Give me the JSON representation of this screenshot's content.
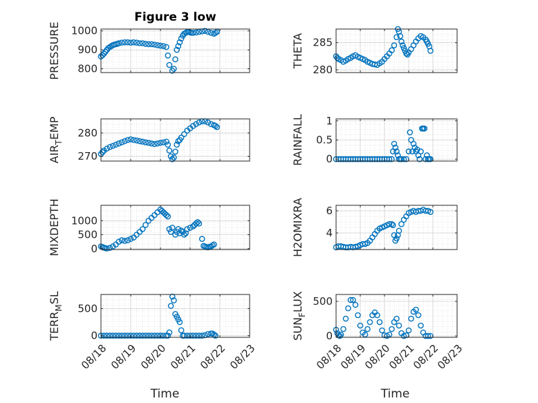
{
  "figure": {
    "title": "Figure 3 low",
    "xlabel": "Time",
    "x_ticks": [
      "08/18",
      "08/19",
      "08/20",
      "08/21",
      "08/22",
      "08/23"
    ],
    "marker_color": "#0072BD"
  },
  "chart_data": [
    {
      "type": "scatter",
      "ylabel": "PRESSURE",
      "ylim": [
        780,
        1010
      ],
      "yticks": [
        800,
        900,
        1000
      ],
      "xlim": [
        0,
        5
      ],
      "grid": true,
      "marker": "open-circle",
      "x": [
        0,
        0.05,
        0.1,
        0.15,
        0.2,
        0.25,
        0.3,
        0.35,
        0.4,
        0.45,
        0.5,
        0.55,
        0.6,
        0.7,
        0.8,
        0.9,
        1.0,
        1.1,
        1.2,
        1.3,
        1.4,
        1.5,
        1.6,
        1.7,
        1.8,
        1.9,
        2.0,
        2.1,
        2.2,
        2.25,
        2.3,
        2.4,
        2.45,
        2.5,
        2.55,
        2.6,
        2.65,
        2.7,
        2.75,
        2.8,
        2.85,
        2.9,
        2.95,
        3.0,
        3.05,
        3.1,
        3.2,
        3.3,
        3.4,
        3.5,
        3.6,
        3.7,
        3.8,
        3.85,
        3.9
      ],
      "y": [
        865,
        872,
        880,
        890,
        900,
        910,
        915,
        920,
        925,
        928,
        930,
        932,
        935,
        938,
        940,
        940,
        938,
        940,
        938,
        935,
        935,
        932,
        930,
        930,
        928,
        925,
        922,
        920,
        915,
        870,
        820,
        790,
        800,
        850,
        900,
        920,
        940,
        960,
        975,
        985,
        990,
        995,
        995,
        992,
        990,
        990,
        992,
        995,
        998,
        1000,
        995,
        990,
        985,
        990,
        995
      ]
    },
    {
      "type": "scatter",
      "ylabel": "THETA",
      "ylim": [
        279.5,
        287.5
      ],
      "yticks": [
        280,
        285
      ],
      "xlim": [
        0,
        5
      ],
      "grid": true,
      "marker": "open-circle",
      "x": [
        0,
        0.05,
        0.1,
        0.2,
        0.3,
        0.4,
        0.5,
        0.6,
        0.7,
        0.8,
        0.9,
        1.0,
        1.1,
        1.2,
        1.3,
        1.4,
        1.5,
        1.6,
        1.7,
        1.8,
        1.9,
        2.0,
        2.1,
        2.2,
        2.3,
        2.4,
        2.5,
        2.55,
        2.6,
        2.65,
        2.7,
        2.75,
        2.8,
        2.85,
        2.9,
        2.95,
        3.0,
        3.1,
        3.2,
        3.3,
        3.4,
        3.5,
        3.6,
        3.7,
        3.75,
        3.8,
        3.85,
        3.9
      ],
      "y": [
        282.5,
        282.2,
        282,
        281.8,
        281.5,
        281.7,
        282,
        282.2,
        282.5,
        282.7,
        282.4,
        282.2,
        282,
        281.8,
        281.5,
        281.3,
        281.1,
        281,
        280.9,
        281.2,
        281.5,
        282,
        282.5,
        283,
        283.6,
        284.5,
        286,
        287.5,
        287,
        286.2,
        285.2,
        284.5,
        284,
        283.5,
        283,
        282.8,
        283.2,
        283.8,
        284.5,
        285.2,
        285.8,
        286.2,
        286,
        285.6,
        285.2,
        284.8,
        284.3,
        283.5
      ]
    },
    {
      "type": "scatter",
      "ylabel": "AIR_TEMP",
      "ylim": [
        268,
        286
      ],
      "yticks": [
        270,
        280
      ],
      "xlim": [
        0,
        5
      ],
      "grid": true,
      "marker": "open-circle",
      "x": [
        0,
        0.05,
        0.1,
        0.2,
        0.3,
        0.4,
        0.5,
        0.6,
        0.7,
        0.8,
        0.9,
        1.0,
        1.1,
        1.2,
        1.3,
        1.4,
        1.5,
        1.6,
        1.7,
        1.8,
        1.9,
        2.0,
        2.1,
        2.2,
        2.25,
        2.3,
        2.35,
        2.4,
        2.45,
        2.5,
        2.55,
        2.6,
        2.65,
        2.7,
        2.8,
        2.9,
        3.0,
        3.1,
        3.2,
        3.3,
        3.4,
        3.5,
        3.6,
        3.7,
        3.8,
        3.85,
        3.9
      ],
      "y": [
        271,
        271.8,
        272.5,
        273.3,
        274,
        274.5,
        275,
        275.5,
        276,
        276.5,
        277,
        277.3,
        277,
        276.8,
        276.5,
        276.3,
        276,
        275.8,
        275.5,
        275.3,
        275.5,
        275.8,
        276,
        276.3,
        275,
        272.5,
        270,
        268.8,
        269.5,
        272,
        275,
        276.5,
        277,
        278,
        279.5,
        281,
        282,
        283,
        283.8,
        284.5,
        285,
        285,
        284.5,
        283.8,
        283.3,
        283,
        282.5
      ]
    },
    {
      "type": "scatter",
      "ylabel": "RAINFALL",
      "ylim": [
        -0.05,
        1.05
      ],
      "yticks": [
        0,
        0.5,
        1
      ],
      "xlim": [
        0,
        5
      ],
      "grid": true,
      "marker": "open-circle",
      "x": [
        0,
        0.1,
        0.2,
        0.3,
        0.4,
        0.5,
        0.6,
        0.7,
        0.8,
        0.9,
        1.0,
        1.1,
        1.2,
        1.3,
        1.4,
        1.5,
        1.6,
        1.7,
        1.8,
        1.9,
        2.0,
        2.1,
        2.2,
        2.3,
        2.35,
        2.4,
        2.45,
        2.5,
        2.55,
        2.6,
        2.65,
        2.7,
        2.8,
        2.9,
        3.0,
        3.05,
        3.1,
        3.15,
        3.2,
        3.25,
        3.3,
        3.35,
        3.4,
        3.45,
        3.5,
        3.55,
        3.6,
        3.65,
        3.7,
        3.75,
        3.8,
        3.85,
        3.9
      ],
      "y": [
        0,
        0,
        0,
        0,
        0,
        0,
        0,
        0,
        0,
        0,
        0,
        0,
        0,
        0,
        0,
        0,
        0,
        0,
        0,
        0,
        0,
        0,
        0,
        0,
        0.2,
        0.4,
        0.3,
        0.2,
        0.1,
        0,
        0,
        0,
        0,
        0,
        0.2,
        0.7,
        0.5,
        0.2,
        0.4,
        0.3,
        0.2,
        0.25,
        0.1,
        0,
        0.2,
        0.8,
        0.8,
        0.8,
        0,
        0.1,
        0,
        0,
        0
      ]
    },
    {
      "type": "scatter",
      "ylabel": "MIXDEPTH",
      "ylim": [
        -30,
        1550
      ],
      "yticks": [
        0,
        500,
        1000
      ],
      "xlim": [
        0,
        5
      ],
      "grid": true,
      "marker": "open-circle",
      "x": [
        0,
        0.05,
        0.1,
        0.15,
        0.2,
        0.3,
        0.4,
        0.5,
        0.6,
        0.7,
        0.8,
        0.9,
        1.0,
        1.1,
        1.2,
        1.3,
        1.4,
        1.5,
        1.6,
        1.7,
        1.8,
        1.9,
        2.0,
        2.05,
        2.1,
        2.15,
        2.2,
        2.25,
        2.3,
        2.35,
        2.4,
        2.5,
        2.55,
        2.6,
        2.65,
        2.7,
        2.75,
        2.8,
        2.85,
        2.9,
        3.0,
        3.1,
        3.15,
        3.2,
        3.25,
        3.3,
        3.4,
        3.45,
        3.5,
        3.55,
        3.6,
        3.65,
        3.7,
        3.75,
        3.8
      ],
      "y": [
        80,
        60,
        40,
        20,
        10,
        30,
        80,
        150,
        250,
        300,
        280,
        300,
        350,
        400,
        500,
        600,
        700,
        850,
        1000,
        1100,
        1200,
        1300,
        1400,
        1350,
        1300,
        1250,
        1200,
        1150,
        700,
        600,
        750,
        500,
        600,
        700,
        550,
        650,
        600,
        500,
        550,
        700,
        750,
        800,
        850,
        900,
        950,
        900,
        350,
        100,
        80,
        60,
        50,
        70,
        80,
        120,
        150
      ]
    },
    {
      "type": "scatter",
      "ylabel": "H2OMIXRA",
      "ylim": [
        2.5,
        6.5
      ],
      "yticks": [
        4,
        6
      ],
      "xlim": [
        0,
        5
      ],
      "grid": true,
      "marker": "open-circle",
      "x": [
        0,
        0.1,
        0.2,
        0.3,
        0.4,
        0.5,
        0.6,
        0.7,
        0.8,
        0.9,
        1.0,
        1.1,
        1.2,
        1.3,
        1.4,
        1.5,
        1.6,
        1.7,
        1.8,
        1.9,
        2.0,
        2.1,
        2.2,
        2.3,
        2.35,
        2.4,
        2.45,
        2.5,
        2.55,
        2.6,
        2.7,
        2.8,
        2.9,
        3.0,
        3.1,
        3.2,
        3.3,
        3.4,
        3.5,
        3.6,
        3.7,
        3.8,
        3.9
      ],
      "y": [
        2.7,
        2.8,
        2.8,
        2.75,
        2.7,
        2.7,
        2.75,
        2.7,
        2.75,
        2.8,
        2.9,
        3.0,
        3.0,
        3.1,
        3.3,
        3.6,
        3.9,
        4.2,
        4.4,
        4.5,
        4.6,
        4.7,
        4.8,
        4.8,
        4.7,
        3.8,
        3.3,
        3.5,
        3.8,
        4.2,
        4.8,
        5.2,
        5.5,
        5.8,
        5.9,
        6.0,
        5.9,
        6.0,
        6.0,
        6.1,
        6.0,
        6.0,
        5.9
      ]
    },
    {
      "type": "scatter",
      "ylabel": "TERR_MSL",
      "ylim": [
        -30,
        760
      ],
      "yticks": [
        0,
        500
      ],
      "xlim": [
        0,
        5
      ],
      "grid": true,
      "marker": "open-circle",
      "x": [
        0,
        0.1,
        0.2,
        0.3,
        0.4,
        0.5,
        0.6,
        0.7,
        0.8,
        0.9,
        1.0,
        1.1,
        1.2,
        1.3,
        1.4,
        1.5,
        1.6,
        1.7,
        1.8,
        1.9,
        2.0,
        2.1,
        2.2,
        2.25,
        2.3,
        2.35,
        2.4,
        2.45,
        2.5,
        2.55,
        2.6,
        2.65,
        2.7,
        2.75,
        2.8,
        2.9,
        3.0,
        3.1,
        3.2,
        3.3,
        3.4,
        3.5,
        3.6,
        3.7,
        3.75,
        3.8,
        3.85
      ],
      "y": [
        0,
        0,
        0,
        0,
        0,
        0,
        0,
        0,
        0,
        0,
        0,
        0,
        0,
        0,
        0,
        0,
        0,
        0,
        0,
        0,
        0,
        0,
        0,
        0,
        60,
        550,
        720,
        650,
        400,
        350,
        300,
        250,
        100,
        0,
        0,
        0,
        0,
        0,
        0,
        0,
        0,
        10,
        30,
        40,
        40,
        20,
        0
      ]
    },
    {
      "type": "scatter",
      "ylabel": "SUN_FLUX",
      "ylim": [
        -20,
        600
      ],
      "yticks": [
        0,
        500
      ],
      "xlim": [
        0,
        5
      ],
      "grid": true,
      "marker": "open-circle",
      "x": [
        0,
        0.05,
        0.1,
        0.15,
        0.2,
        0.3,
        0.4,
        0.5,
        0.6,
        0.7,
        0.8,
        0.9,
        1.0,
        1.1,
        1.2,
        1.3,
        1.4,
        1.5,
        1.6,
        1.7,
        1.8,
        1.9,
        2.0,
        2.1,
        2.2,
        2.3,
        2.4,
        2.5,
        2.6,
        2.7,
        2.8,
        2.9,
        3.0,
        3.1,
        3.2,
        3.3,
        3.4,
        3.5,
        3.6,
        3.7,
        3.8,
        3.9
      ],
      "y": [
        90,
        40,
        10,
        0,
        20,
        100,
        250,
        400,
        520,
        520,
        450,
        300,
        150,
        50,
        20,
        100,
        200,
        300,
        340,
        300,
        200,
        80,
        10,
        0,
        20,
        100,
        200,
        250,
        150,
        40,
        0,
        10,
        80,
        250,
        350,
        380,
        300,
        150,
        50,
        0,
        0,
        0
      ]
    }
  ]
}
